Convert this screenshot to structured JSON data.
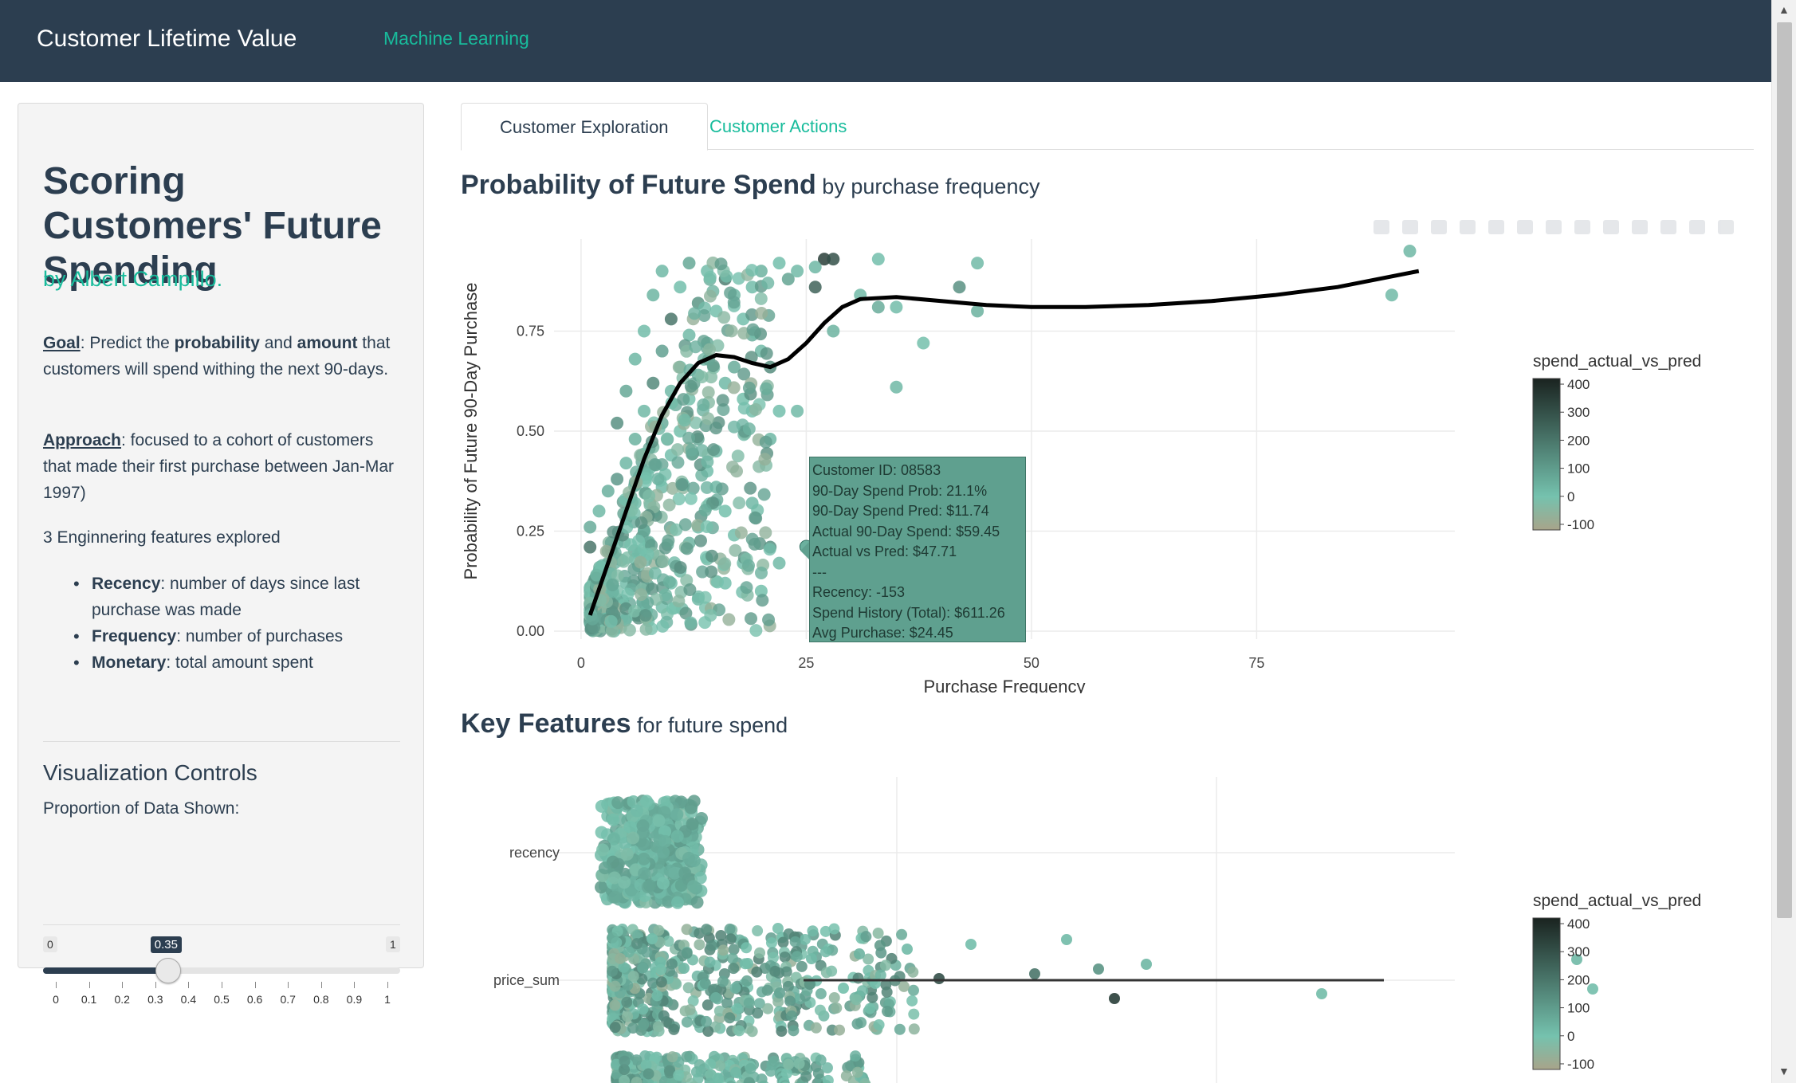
{
  "navbar": {
    "brand": "Customer Lifetime Value",
    "nav_link": "Machine Learning"
  },
  "sidebar": {
    "title": "Scoring Customers' Future Spending",
    "author": "by Albert Campillo.",
    "goal_label": "Goal",
    "goal_text_1": ": Predict the ",
    "goal_bold_1": "probability",
    "goal_text_2": " and ",
    "goal_bold_2": "amount",
    "goal_text_3": " that customers will spend withing the next 90-days.",
    "approach_label": "Approach",
    "approach_text": ": focused to a cohort of customers that made their first purchase between Jan-Mar 1997)",
    "features_intro": "3 Enginnering features explored",
    "features": [
      {
        "name": "Recency",
        "desc": ": number of days since last purchase was made"
      },
      {
        "name": "Frequency",
        "desc": ": number of purchases"
      },
      {
        "name": "Monetary",
        "desc": ": total amount spent"
      }
    ],
    "controls_title": "Visualization Controls",
    "slider_label": "Proportion of Data Shown:",
    "slider": {
      "min": 0,
      "max": 1,
      "value": 0.35,
      "min_label": "0",
      "max_label": "1",
      "value_label": "0.35",
      "tick_labels": [
        "0",
        "0.1",
        "0.2",
        "0.3",
        "0.4",
        "0.5",
        "0.6",
        "0.7",
        "0.8",
        "0.9",
        "1"
      ]
    }
  },
  "tabs": [
    {
      "label": "Customer Exploration",
      "active": true
    },
    {
      "label": "Customer Actions",
      "active": false
    }
  ],
  "section1": {
    "title": "Probability of Future Spend",
    "subtitle": " by purchase frequency"
  },
  "section2": {
    "title": "Key Features",
    "subtitle": " for future spend"
  },
  "tooltip": {
    "lines": [
      "Customer ID: 08583",
      "90-Day Spend Prob: 21.1%",
      "90-Day Spend Pred: $11.74",
      "Actual 90-Day Spend: $59.45",
      "Actual vs Pred: $47.71",
      "---",
      "Recency: -153",
      "Spend History (Total): $611.26",
      "Avg Purchase: $24.45"
    ]
  },
  "colors": {
    "navbar": "#2c3e50",
    "accent": "#18bc9c",
    "point_low": "#a8a48a",
    "point_mid": "#75c2ae",
    "point_high": "#1a2320"
  },
  "chart_data": [
    {
      "type": "scatter",
      "title": "Probability of Future Spend by purchase frequency",
      "xlabel": "Purchase Frequency",
      "ylabel": "Probability of Future 90-Day Purchase",
      "xlim": [
        -3,
        97
      ],
      "ylim": [
        -0.02,
        0.98
      ],
      "x_ticks": [
        0,
        25,
        50,
        75
      ],
      "x_tick_labels": [
        "0",
        "25",
        "50",
        "75"
      ],
      "y_ticks": [
        0.0,
        0.25,
        0.5,
        0.75
      ],
      "y_tick_labels": [
        "0.00",
        "0.25",
        "0.50",
        "0.75"
      ],
      "color_legend_title": "spend_actual_vs_pred",
      "color_legend_labels": [
        "400",
        "300",
        "200",
        "100",
        "0",
        "-100"
      ],
      "color_range": [
        -120,
        420
      ],
      "highlighted_point": {
        "x": 25,
        "y": 0.211,
        "color_value": 47.71
      },
      "trend_line": {
        "x": [
          1,
          3,
          5,
          7,
          9,
          11,
          13,
          15,
          17,
          19,
          21,
          23,
          25,
          27,
          29,
          31,
          35,
          40,
          45,
          50,
          56,
          63,
          70,
          77,
          84,
          93
        ],
        "y": [
          0.04,
          0.17,
          0.3,
          0.43,
          0.54,
          0.62,
          0.67,
          0.69,
          0.685,
          0.67,
          0.66,
          0.68,
          0.72,
          0.77,
          0.81,
          0.83,
          0.835,
          0.825,
          0.815,
          0.81,
          0.81,
          0.815,
          0.825,
          0.84,
          0.86,
          0.9
        ]
      },
      "points": [
        {
          "x": 1,
          "y": 0.03,
          "c": 10
        },
        {
          "x": 2,
          "y": 0.06,
          "c": 5
        },
        {
          "x": 1,
          "y": 0.1,
          "c": 20
        },
        {
          "x": 3,
          "y": 0.04,
          "c": -10
        },
        {
          "x": 2,
          "y": 0.15,
          "c": 30
        },
        {
          "x": 4,
          "y": 0.08,
          "c": 0
        },
        {
          "x": 5,
          "y": 0.12,
          "c": 15
        },
        {
          "x": 3,
          "y": 0.2,
          "c": 40
        },
        {
          "x": 1,
          "y": 0.26,
          "c": 60
        },
        {
          "x": 1,
          "y": 0.21,
          "c": 200
        },
        {
          "x": 2,
          "y": 0.3,
          "c": 25
        },
        {
          "x": 4,
          "y": 0.22,
          "c": 10
        },
        {
          "x": 6,
          "y": 0.18,
          "c": 5
        },
        {
          "x": 5,
          "y": 0.28,
          "c": 80
        },
        {
          "x": 7,
          "y": 0.25,
          "c": 20
        },
        {
          "x": 3,
          "y": 0.35,
          "c": 50
        },
        {
          "x": 4,
          "y": 0.38,
          "c": 110
        },
        {
          "x": 6,
          "y": 0.32,
          "c": 15
        },
        {
          "x": 8,
          "y": 0.3,
          "c": 0
        },
        {
          "x": 5,
          "y": 0.42,
          "c": 30
        },
        {
          "x": 7,
          "y": 0.4,
          "c": 160
        },
        {
          "x": 9,
          "y": 0.36,
          "c": 20
        },
        {
          "x": 6,
          "y": 0.48,
          "c": 40
        },
        {
          "x": 8,
          "y": 0.46,
          "c": -20
        },
        {
          "x": 10,
          "y": 0.44,
          "c": 10
        },
        {
          "x": 4,
          "y": 0.52,
          "c": 130
        },
        {
          "x": 7,
          "y": 0.55,
          "c": 25
        },
        {
          "x": 9,
          "y": 0.52,
          "c": 60
        },
        {
          "x": 11,
          "y": 0.5,
          "c": 5
        },
        {
          "x": 5,
          "y": 0.6,
          "c": 70
        },
        {
          "x": 8,
          "y": 0.62,
          "c": 150
        },
        {
          "x": 10,
          "y": 0.6,
          "c": 20
        },
        {
          "x": 12,
          "y": 0.58,
          "c": -5
        },
        {
          "x": 6,
          "y": 0.68,
          "c": 30
        },
        {
          "x": 9,
          "y": 0.7,
          "c": 90
        },
        {
          "x": 11,
          "y": 0.66,
          "c": 10
        },
        {
          "x": 13,
          "y": 0.64,
          "c": 45
        },
        {
          "x": 7,
          "y": 0.75,
          "c": 15
        },
        {
          "x": 10,
          "y": 0.78,
          "c": 200
        },
        {
          "x": 12,
          "y": 0.74,
          "c": 20
        },
        {
          "x": 14,
          "y": 0.72,
          "c": 60
        },
        {
          "x": 8,
          "y": 0.84,
          "c": 35
        },
        {
          "x": 11,
          "y": 0.86,
          "c": 10
        },
        {
          "x": 13,
          "y": 0.82,
          "c": 120
        },
        {
          "x": 15,
          "y": 0.8,
          "c": 5
        },
        {
          "x": 9,
          "y": 0.9,
          "c": 25
        },
        {
          "x": 12,
          "y": 0.92,
          "c": 70
        },
        {
          "x": 14,
          "y": 0.9,
          "c": 15
        },
        {
          "x": 16,
          "y": 0.88,
          "c": 180
        },
        {
          "x": 17,
          "y": 0.84,
          "c": 30
        },
        {
          "x": 18,
          "y": 0.78,
          "c": 10
        },
        {
          "x": 19,
          "y": 0.74,
          "c": 50
        },
        {
          "x": 20,
          "y": 0.7,
          "c": 20
        },
        {
          "x": 21,
          "y": 0.66,
          "c": 140
        },
        {
          "x": 16,
          "y": 0.62,
          "c": 25
        },
        {
          "x": 18,
          "y": 0.58,
          "c": 5
        },
        {
          "x": 17,
          "y": 0.66,
          "c": 60
        },
        {
          "x": 19,
          "y": 0.86,
          "c": 15
        },
        {
          "x": 20,
          "y": 0.9,
          "c": 40
        },
        {
          "x": 22,
          "y": 0.92,
          "c": 10
        },
        {
          "x": 23,
          "y": 0.88,
          "c": 80
        },
        {
          "x": 24,
          "y": 0.9,
          "c": 20
        },
        {
          "x": 26,
          "y": 0.86,
          "c": 250
        },
        {
          "x": 27,
          "y": 0.93,
          "c": 350
        },
        {
          "x": 28,
          "y": 0.93,
          "c": 300
        },
        {
          "x": 26,
          "y": 0.91,
          "c": 30
        },
        {
          "x": 28,
          "y": 0.75,
          "c": 40
        },
        {
          "x": 31,
          "y": 0.84,
          "c": 20
        },
        {
          "x": 33,
          "y": 0.81,
          "c": 60
        },
        {
          "x": 35,
          "y": 0.81,
          "c": 15
        },
        {
          "x": 38,
          "y": 0.72,
          "c": 5
        },
        {
          "x": 35,
          "y": 0.61,
          "c": 25
        },
        {
          "x": 42,
          "y": 0.86,
          "c": 130
        },
        {
          "x": 44,
          "y": 0.92,
          "c": 20
        },
        {
          "x": 44,
          "y": 0.8,
          "c": 45
        },
        {
          "x": 33,
          "y": 0.93,
          "c": 10
        },
        {
          "x": 92,
          "y": 0.95,
          "c": 30
        },
        {
          "x": 90,
          "y": 0.84,
          "c": 20
        },
        {
          "x": 14,
          "y": 0.4,
          "c": 10
        },
        {
          "x": 15,
          "y": 0.36,
          "c": 30
        },
        {
          "x": 16,
          "y": 0.3,
          "c": 5
        },
        {
          "x": 13,
          "y": 0.26,
          "c": 15
        },
        {
          "x": 12,
          "y": 0.22,
          "c": 40
        },
        {
          "x": 14,
          "y": 0.18,
          "c": -15
        },
        {
          "x": 11,
          "y": 0.15,
          "c": 20
        },
        {
          "x": 17,
          "y": 0.24,
          "c": 10
        },
        {
          "x": 19,
          "y": 0.32,
          "c": 25
        },
        {
          "x": 21,
          "y": 0.21,
          "c": 130
        },
        {
          "x": 18,
          "y": 0.17,
          "c": 15
        },
        {
          "x": 22,
          "y": 0.17,
          "c": 20
        },
        {
          "x": 25,
          "y": 0.211,
          "c": 47.71
        },
        {
          "x": 21,
          "y": 0.48,
          "c": 30
        },
        {
          "x": 22,
          "y": 0.55,
          "c": 10
        },
        {
          "x": 24,
          "y": 0.55,
          "c": 20
        },
        {
          "x": 19,
          "y": 0.55,
          "c": 5
        },
        {
          "x": 13,
          "y": 0.08,
          "c": 25
        },
        {
          "x": 10,
          "y": 0.12,
          "c": 10
        },
        {
          "x": 7,
          "y": 0.1,
          "c": -5
        },
        {
          "x": 9,
          "y": 0.06,
          "c": 15
        },
        {
          "x": 6,
          "y": 0.04,
          "c": 35
        },
        {
          "x": 16,
          "y": 0.12,
          "c": 10
        },
        {
          "x": 20,
          "y": 0.1,
          "c": 5
        },
        {
          "x": 15,
          "y": 0.45,
          "c": 25
        },
        {
          "x": 13,
          "y": 0.48,
          "c": 70
        }
      ]
    },
    {
      "type": "scatter",
      "title": "Key Features for future spend",
      "categories": [
        "recency",
        "price_sum"
      ],
      "color_legend_title": "spend_actual_vs_pred",
      "color_legend_labels": [
        "400",
        "300",
        "200",
        "100",
        "0",
        "-100"
      ],
      "color_range": [
        -120,
        420
      ],
      "series": [
        {
          "name": "recency",
          "points": [
            {
              "x": 0.05,
              "c": 10
            },
            {
              "x": 0.1,
              "c": 30
            },
            {
              "x": 0.15,
              "c": -10
            },
            {
              "x": 0.2,
              "c": 20
            },
            {
              "x": 0.25,
              "c": 5
            },
            {
              "x": 0.3,
              "c": 60
            },
            {
              "x": 0.12,
              "c": 15
            },
            {
              "x": 0.22,
              "c": 150
            }
          ]
        },
        {
          "name": "price_sum",
          "points": [
            {
              "x": 0.1,
              "c": 10
            },
            {
              "x": 0.2,
              "c": 30
            },
            {
              "x": 0.3,
              "c": 50
            },
            {
              "x": 0.4,
              "c": 15
            },
            {
              "x": 0.5,
              "c": 80
            },
            {
              "x": 0.6,
              "c": 20
            },
            {
              "x": 0.7,
              "c": 5
            },
            {
              "x": 0.75,
              "c": 40
            },
            {
              "x": 0.8,
              "c": 10
            },
            {
              "x": 0.9,
              "c": 20
            },
            {
              "x": 1.0,
              "c": 300
            },
            {
              "x": 1.1,
              "c": 10
            },
            {
              "x": 1.3,
              "c": 200
            },
            {
              "x": 1.4,
              "c": 20
            },
            {
              "x": 1.5,
              "c": 120
            },
            {
              "x": 1.55,
              "c": 350
            },
            {
              "x": 1.65,
              "c": 30
            },
            {
              "x": 2.2,
              "c": 15
            },
            {
              "x": 3.0,
              "c": 25
            },
            {
              "x": 3.05,
              "c": 10
            }
          ]
        }
      ]
    }
  ]
}
